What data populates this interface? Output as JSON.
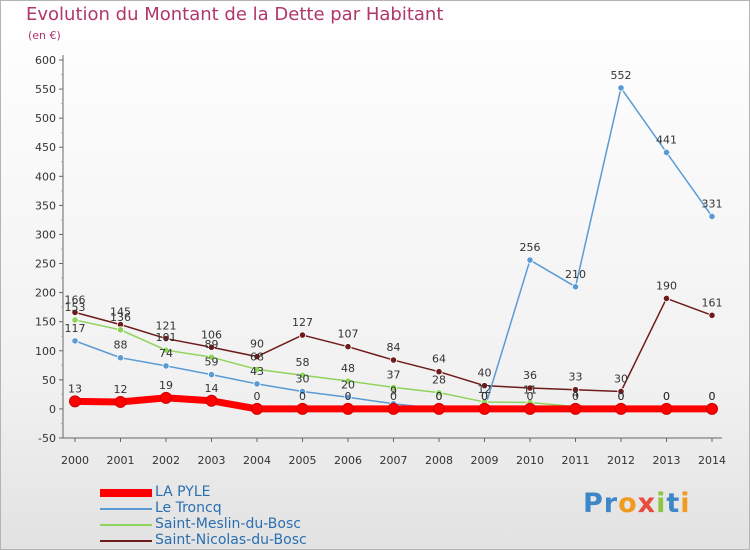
{
  "title": "Evolution du Montant de la Dette par Habitant",
  "subtitle": "(en €)",
  "logo": "Proxiti",
  "chart_data": {
    "type": "line",
    "x": [
      "2000",
      "2001",
      "2002",
      "2003",
      "2004",
      "2005",
      "2006",
      "2007",
      "2008",
      "2009",
      "2010",
      "2011",
      "2012",
      "2013",
      "2014"
    ],
    "ylim": [
      -50,
      600
    ],
    "yticks": [
      -50,
      0,
      50,
      100,
      150,
      200,
      250,
      300,
      350,
      400,
      450,
      500,
      550,
      600
    ],
    "grid": false,
    "legend_position": "bottom-left",
    "series": [
      {
        "name": "LA PYLE",
        "color": "#ff0000",
        "values": [
          13,
          12,
          19,
          14,
          0,
          0,
          0,
          0,
          0,
          0,
          0,
          0,
          0,
          0,
          0
        ],
        "labels": [
          "13",
          "12",
          "19",
          "14",
          "0",
          "0",
          "0",
          "0",
          "0",
          "0",
          "0",
          "0",
          "0",
          "0",
          "0"
        ]
      },
      {
        "name": "Le Troncq",
        "color": "#5b9bd5",
        "values": [
          117,
          88,
          74,
          59,
          43,
          30,
          20,
          9,
          0,
          0,
          256,
          210,
          552,
          441,
          331
        ],
        "labels": [
          "117",
          "88",
          "74",
          "59",
          "43",
          "30",
          "20",
          "9",
          "0",
          "0",
          "256",
          "210",
          "552",
          "441",
          "331"
        ]
      },
      {
        "name": "Saint-Meslin-du-Bosc",
        "color": "#8fd45a",
        "values": [
          153,
          136,
          101,
          89,
          68,
          58,
          48,
          37,
          28,
          12,
          11,
          4,
          0,
          0,
          0
        ],
        "labels": [
          "153",
          "136",
          "101",
          "89",
          "68",
          "58",
          "48",
          "37",
          "28",
          "12",
          "11",
          "4",
          "0",
          "0",
          "0"
        ]
      },
      {
        "name": "Saint-Nicolas-du-Bosc",
        "color": "#6e1b1b",
        "values": [
          166,
          145,
          121,
          106,
          90,
          127,
          107,
          84,
          64,
          40,
          36,
          33,
          30,
          190,
          161
        ],
        "labels": [
          "166",
          "145",
          "121",
          "106",
          "90",
          "127",
          "107",
          "84",
          "64",
          "40",
          "36",
          "33",
          "30",
          "190",
          "161"
        ]
      }
    ]
  }
}
